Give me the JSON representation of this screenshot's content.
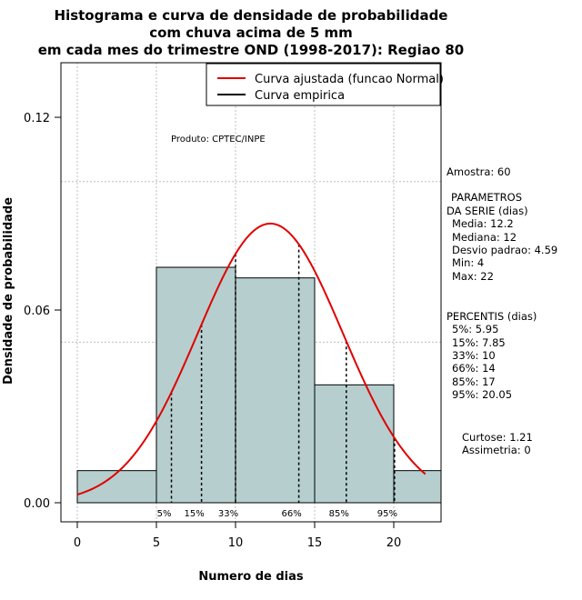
{
  "chart_data": {
    "type": "bar",
    "title_lines": [
      "Histograma e curva de densidade de probabilidade",
      "com chuva acima de 5 mm",
      "em cada mes do trimestre OND (1998-2017): Regiao 80"
    ],
    "xlabel": "Numero de dias",
    "ylabel": "Densidade de probabilidade",
    "xlim": [
      -1,
      23
    ],
    "ylim": [
      0,
      0.135
    ],
    "x_ticks": [
      0,
      5,
      10,
      15,
      20
    ],
    "x_tick_labels": [
      "0",
      "5",
      "10",
      "15",
      "20"
    ],
    "y_ticks": [
      0.0,
      0.06,
      0.12
    ],
    "y_tick_labels": [
      "0.00",
      "0.06",
      "0.12"
    ],
    "grid": true,
    "grid_x": [
      0,
      5,
      10,
      15,
      20
    ],
    "grid_y": [
      0.05,
      0.1
    ],
    "bins": [
      {
        "x0": 0,
        "x1": 5,
        "density": 0.01
      },
      {
        "x0": 5,
        "x1": 10,
        "density": 0.0733
      },
      {
        "x0": 10,
        "x1": 15,
        "density": 0.07
      },
      {
        "x0": 15,
        "x1": 20,
        "density": 0.0367
      },
      {
        "x0": 20,
        "x1": 23,
        "density": 0.01
      }
    ],
    "bar_fill": "#b6cece",
    "curve": {
      "name": "Curva ajustada (funcao Normal)",
      "mean": 12.2,
      "sd": 4.59,
      "x_from": 0,
      "x_to": 22,
      "color": "#e00000"
    },
    "empirical_name": "Curva empirica",
    "empirical_color": "#000000",
    "legend_position": "top-right",
    "percentile_lines": [
      {
        "label": "5%",
        "x": 5.95
      },
      {
        "label": "15%",
        "x": 7.85
      },
      {
        "label": "33%",
        "x": 10
      },
      {
        "label": "66%",
        "x": 14
      },
      {
        "label": "85%",
        "x": 17
      },
      {
        "label": "95%",
        "x": 20.05
      }
    ],
    "credit": "Produto: CPTEC/INPE"
  },
  "stats": {
    "amostra": "Amostra: 60",
    "parametros_title_1": "PARAMETROS",
    "parametros_title_2": "DA SERIE (dias)",
    "media": "Media: 12.2",
    "mediana": "Mediana: 12",
    "desvio": "Desvio padrao: 4.59",
    "min": "Min: 4",
    "max": "Max: 22",
    "percentis_title": "PERCENTIS (dias)",
    "p5": "5%: 5.95",
    "p15": "15%: 7.85",
    "p33": "33%: 10",
    "p66": "66%: 14",
    "p85": "85%: 17",
    "p95": "95%: 20.05",
    "curtose": "Curtose: 1.21",
    "assimetria": "Assimetria: 0"
  }
}
